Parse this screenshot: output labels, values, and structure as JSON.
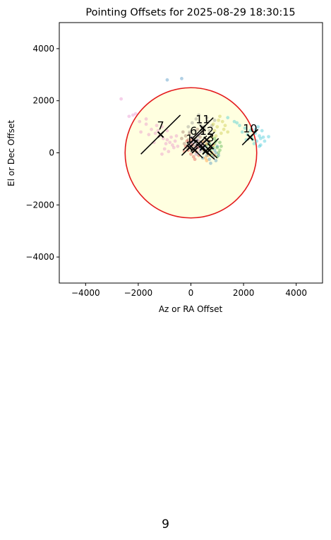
{
  "chart_data": {
    "type": "scatter",
    "title": "Pointing Offsets for 2025-08-29 18:30:15",
    "xlabel": "Az or RA Offset",
    "ylabel": "El or Dec Offset",
    "xlim": [
      -5000,
      5000
    ],
    "ylim": [
      -5000,
      5000
    ],
    "xticks": [
      -4000,
      -2000,
      0,
      2000,
      4000
    ],
    "yticks": [
      -4000,
      -2000,
      0,
      2000,
      4000
    ],
    "tick_labels_x": [
      "−4000",
      "−2000",
      "0",
      "2000",
      "4000"
    ],
    "tick_labels_y": [
      "−4000",
      "−2000",
      "0",
      "2000",
      "4000"
    ],
    "grid": false,
    "legend": "none",
    "circle": {
      "center": [
        0,
        0
      ],
      "radius": 2500,
      "edge_color": "#e41a1c",
      "fill_color": "#ffffe0"
    },
    "series": [
      {
        "color": "#e377c2",
        "points": [
          [
            -2650,
            2070
          ],
          [
            -2200,
            1450
          ],
          [
            -1950,
            1200
          ],
          [
            -1700,
            1100
          ],
          [
            -1500,
            900
          ],
          [
            -1350,
            750
          ],
          [
            -1200,
            650
          ],
          [
            -1050,
            550
          ],
          [
            -900,
            500
          ],
          [
            -800,
            400
          ],
          [
            -700,
            300
          ],
          [
            -650,
            200
          ],
          [
            -900,
            850
          ],
          [
            -1100,
            1000
          ],
          [
            -1600,
            700
          ],
          [
            -1900,
            800
          ],
          [
            -2100,
            1500
          ],
          [
            -1300,
            1050
          ],
          [
            -1000,
            150
          ],
          [
            -750,
            600
          ],
          [
            -600,
            450
          ],
          [
            -1400,
            400
          ],
          [
            -1100,
            -50
          ],
          [
            -850,
            50
          ],
          [
            -500,
            250
          ],
          [
            -1700,
            1300
          ],
          [
            -2350,
            1400
          ],
          [
            -1250,
            850
          ],
          [
            -950,
            350
          ],
          [
            -550,
            650
          ]
        ]
      },
      {
        "color": "#17becf",
        "points": [
          [
            1400,
            1350
          ],
          [
            1650,
            1200
          ],
          [
            1850,
            1050
          ],
          [
            2050,
            950
          ],
          [
            2250,
            850
          ],
          [
            2450,
            750
          ],
          [
            2600,
            650
          ],
          [
            2750,
            600
          ],
          [
            2950,
            620
          ],
          [
            2500,
            450
          ],
          [
            2650,
            300
          ],
          [
            2350,
            500
          ],
          [
            2150,
            700
          ],
          [
            1950,
            800
          ],
          [
            2550,
            1000
          ],
          [
            2700,
            850
          ],
          [
            2400,
            350
          ],
          [
            2800,
            450
          ],
          [
            2300,
            600
          ],
          [
            2600,
            250
          ],
          [
            1750,
            1150
          ],
          [
            2100,
            500
          ],
          [
            2650,
            550
          ],
          [
            2450,
            900
          ]
        ]
      },
      {
        "color": "#1f77b4",
        "points": [
          [
            -900,
            2800
          ],
          [
            -350,
            2850
          ],
          [
            700,
            350
          ],
          [
            800,
            200
          ],
          [
            900,
            100
          ],
          [
            950,
            0
          ],
          [
            850,
            -150
          ],
          [
            700,
            -250
          ],
          [
            600,
            -100
          ],
          [
            500,
            50
          ],
          [
            450,
            -200
          ],
          [
            1000,
            250
          ],
          [
            1050,
            -100
          ],
          [
            650,
            400
          ],
          [
            750,
            -400
          ],
          [
            550,
            250
          ],
          [
            400,
            150
          ],
          [
            950,
            -300
          ]
        ]
      },
      {
        "color": "#2ca02c",
        "points": [
          [
            900,
            350
          ],
          [
            1000,
            200
          ],
          [
            1100,
            400
          ],
          [
            750,
            100
          ],
          [
            600,
            300
          ],
          [
            800,
            -50
          ],
          [
            950,
            450
          ],
          [
            1050,
            0
          ],
          [
            1150,
            250
          ],
          [
            700,
            350
          ],
          [
            850,
            200
          ],
          [
            1000,
            -150
          ],
          [
            650,
            150
          ],
          [
            900,
            550
          ],
          [
            1100,
            100
          ]
        ]
      },
      {
        "color": "#ff7f0e",
        "points": [
          [
            600,
            350
          ],
          [
            700,
            150
          ],
          [
            800,
            0
          ],
          [
            650,
            -100
          ],
          [
            500,
            100
          ],
          [
            750,
            250
          ],
          [
            550,
            -200
          ],
          [
            850,
            300
          ],
          [
            450,
            400
          ],
          [
            900,
            -100
          ],
          [
            600,
            -300
          ],
          [
            700,
            450
          ]
        ]
      },
      {
        "color": "#8c564b",
        "points": [
          [
            -300,
            800
          ],
          [
            -200,
            650
          ],
          [
            -100,
            500
          ],
          [
            0,
            400
          ],
          [
            100,
            550
          ],
          [
            200,
            700
          ],
          [
            300,
            450
          ],
          [
            400,
            300
          ],
          [
            -250,
            350
          ],
          [
            -50,
            750
          ],
          [
            150,
            250
          ],
          [
            250,
            900
          ],
          [
            -150,
            200
          ],
          [
            350,
            600
          ],
          [
            50,
            100
          ],
          [
            450,
            800
          ],
          [
            -350,
            550
          ],
          [
            500,
            450
          ]
        ]
      },
      {
        "color": "#9467bd",
        "points": [
          [
            100,
            400
          ],
          [
            200,
            300
          ],
          [
            300,
            200
          ],
          [
            0,
            250
          ],
          [
            400,
            350
          ],
          [
            250,
            500
          ],
          [
            150,
            150
          ],
          [
            350,
            50
          ],
          [
            50,
            600
          ],
          [
            450,
            250
          ],
          [
            -50,
            350
          ],
          [
            300,
            700
          ],
          [
            200,
            -50
          ],
          [
            500,
            150
          ]
        ]
      },
      {
        "color": "#7f7f7f",
        "points": [
          [
            -100,
            1000
          ],
          [
            50,
            1150
          ],
          [
            200,
            1300
          ],
          [
            350,
            1100
          ],
          [
            500,
            950
          ],
          [
            650,
            1200
          ],
          [
            800,
            1050
          ],
          [
            150,
            850
          ],
          [
            400,
            750
          ],
          [
            600,
            1350
          ],
          [
            -50,
            800
          ],
          [
            300,
            1450
          ],
          [
            700,
            850
          ],
          [
            900,
            1250
          ],
          [
            250,
            650
          ],
          [
            450,
            1000
          ]
        ]
      },
      {
        "color": "#bcbd22",
        "points": [
          [
            1200,
            1200
          ],
          [
            1100,
            1400
          ],
          [
            1000,
            1000
          ],
          [
            900,
            850
          ],
          [
            1300,
            1050
          ],
          [
            800,
            600
          ],
          [
            1150,
            750
          ],
          [
            950,
            650
          ],
          [
            1050,
            1250
          ],
          [
            1250,
            900
          ],
          [
            1400,
            800
          ],
          [
            850,
            1100
          ]
        ]
      },
      {
        "color": "#d62728",
        "points": [
          [
            -200,
            250
          ],
          [
            -100,
            100
          ],
          [
            0,
            -50
          ],
          [
            100,
            -150
          ],
          [
            200,
            50
          ],
          [
            -150,
            450
          ],
          [
            50,
            300
          ],
          [
            150,
            -250
          ],
          [
            250,
            200
          ],
          [
            -250,
            50
          ],
          [
            300,
            -100
          ],
          [
            0,
            500
          ]
        ]
      }
    ],
    "markers": [
      {
        "label": "7",
        "x": -1150,
        "y": 700,
        "line_from": [
          -1900,
          -50
        ],
        "line_to": [
          -400,
          1450
        ]
      },
      {
        "label": "10",
        "x": 2250,
        "y": 600,
        "line_from": [
          1950,
          300
        ],
        "line_to": [
          2550,
          900
        ]
      },
      {
        "label": "11",
        "x": 450,
        "y": 950,
        "line_from": [
          50,
          550
        ],
        "line_to": [
          850,
          1350
        ]
      },
      {
        "label": "6",
        "x": 100,
        "y": 500,
        "line_from": [
          -300,
          100
        ],
        "line_to": [
          500,
          900
        ]
      },
      {
        "label": "12",
        "x": 600,
        "y": 500,
        "line_from": [
          300,
          200
        ],
        "line_to": [
          900,
          800
        ]
      },
      {
        "label": "3",
        "x": 750,
        "y": 250,
        "line_from": [
          450,
          -50
        ],
        "line_to": [
          1050,
          550
        ]
      },
      {
        "label": "1",
        "x": -50,
        "y": 200,
        "line_from": [
          -350,
          -100
        ],
        "line_to": [
          250,
          500
        ]
      },
      {
        "label": "",
        "x": 300,
        "y": 350,
        "line_from": [
          0,
          50
        ],
        "line_to": [
          600,
          650
        ]
      },
      {
        "label": "",
        "x": 450,
        "y": 200,
        "line_from": [
          150,
          500
        ],
        "line_to": [
          750,
          -100
        ]
      },
      {
        "label": "",
        "x": 550,
        "y": 50,
        "line_from": [
          200,
          350
        ],
        "line_to": [
          900,
          -250
        ]
      },
      {
        "label": "",
        "x": 150,
        "y": 100,
        "line_from": [
          -150,
          400
        ],
        "line_to": [
          450,
          -200
        ]
      },
      {
        "label": "",
        "x": 700,
        "y": 100,
        "line_from": [
          400,
          400
        ],
        "line_to": [
          1000,
          -200
        ]
      }
    ]
  },
  "page": {
    "number": "9"
  }
}
